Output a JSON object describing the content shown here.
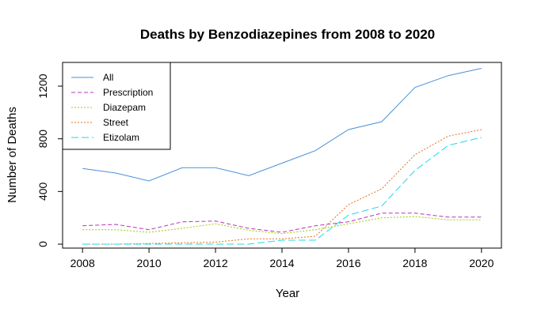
{
  "chart_data": {
    "type": "line",
    "title": "Deaths by Benzodiazepines from 2008 to 2020",
    "xlabel": "Year",
    "ylabel": "Number of Deaths",
    "xlim": [
      2007.4,
      2020.6
    ],
    "ylim": [
      -30,
      1380
    ],
    "xticks": [
      2008,
      2010,
      2012,
      2014,
      2016,
      2018,
      2020
    ],
    "yticks": [
      0,
      400,
      800,
      1200
    ],
    "grid": false,
    "legend_position": "top-left",
    "x": [
      2008,
      2009,
      2010,
      2011,
      2012,
      2013,
      2014,
      2015,
      2016,
      2017,
      2018,
      2019,
      2020
    ],
    "series": [
      {
        "name": "All",
        "color": "#4a90d9",
        "dash": "solid",
        "values": [
          575,
          540,
          480,
          580,
          580,
          520,
          615,
          710,
          870,
          930,
          1190,
          1280,
          1335
        ]
      },
      {
        "name": "Prescription",
        "color": "#b833b8",
        "dash": "dashed",
        "values": [
          140,
          150,
          110,
          170,
          175,
          120,
          90,
          140,
          170,
          235,
          235,
          205,
          205
        ]
      },
      {
        "name": "Diazepam",
        "color": "#99cc00",
        "dash": "dotted",
        "values": [
          110,
          110,
          90,
          120,
          155,
          105,
          80,
          110,
          155,
          200,
          210,
          185,
          185
        ]
      },
      {
        "name": "Street",
        "color": "#e0701a",
        "dash": "dotted",
        "values": [
          0,
          0,
          5,
          10,
          15,
          40,
          40,
          60,
          300,
          420,
          680,
          820,
          870
        ]
      },
      {
        "name": "Etizolam",
        "color": "#22d8e8",
        "dash": "longdash",
        "values": [
          0,
          0,
          0,
          0,
          0,
          0,
          30,
          30,
          220,
          290,
          560,
          750,
          810
        ]
      }
    ]
  }
}
